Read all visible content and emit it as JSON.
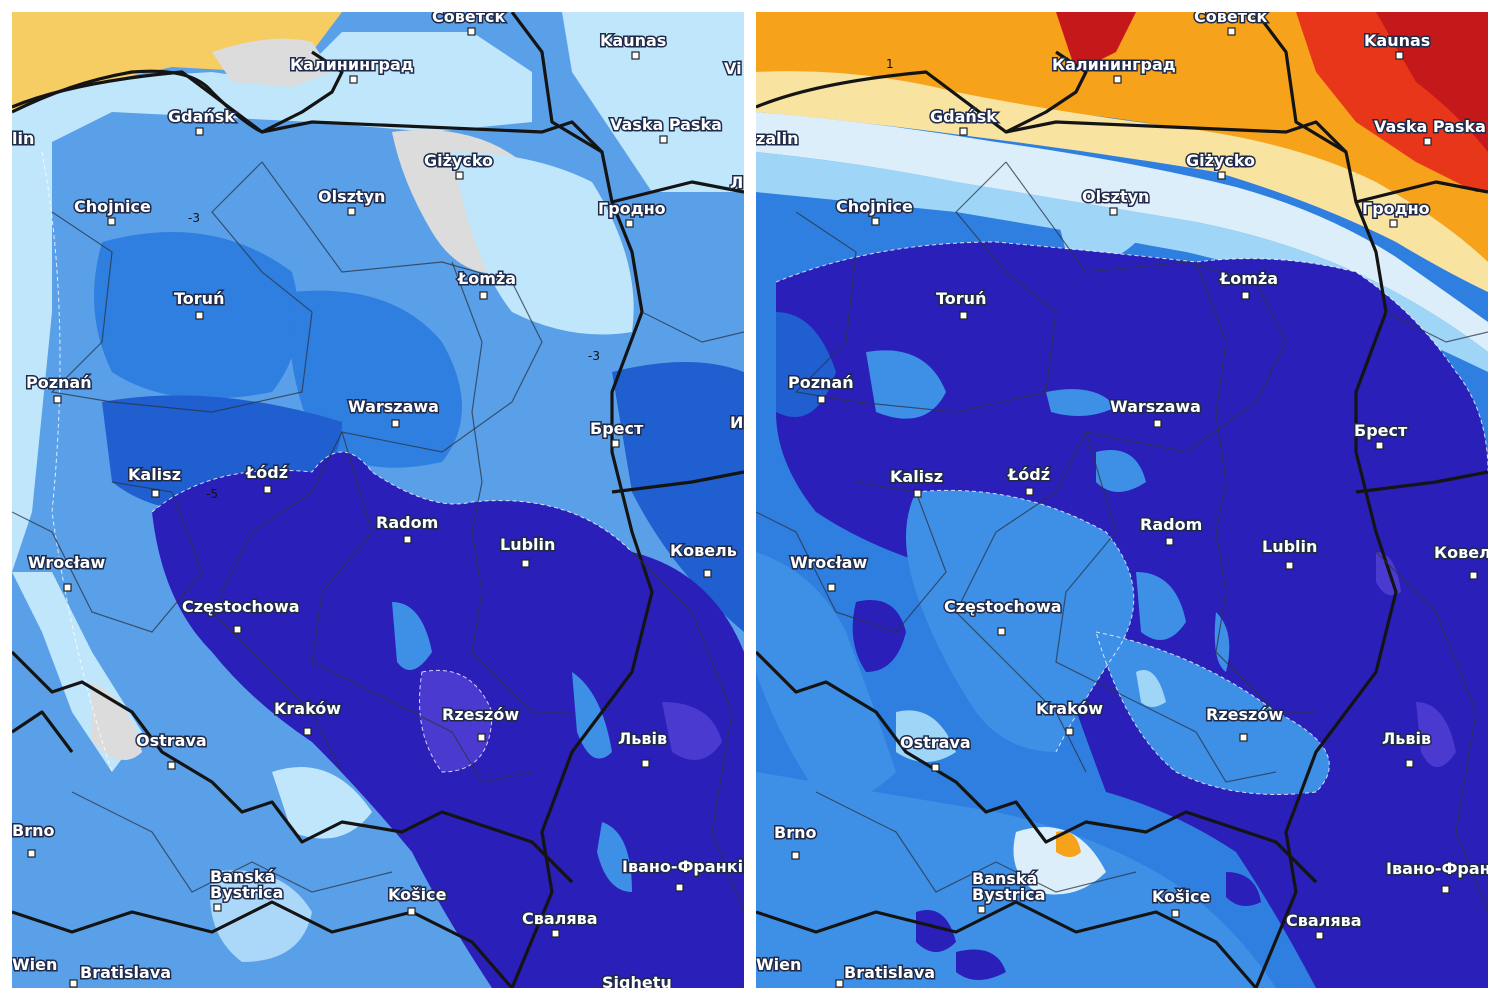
{
  "maps": [
    {
      "name": "left",
      "colors": {
        "bg": "#5aa0e8",
        "light": "#bfe6fb",
        "pale": "#dcdcdc",
        "mid": "#2f7fe0",
        "deep": "#1f5fd0",
        "violet": "#2a1fb8",
        "purple": "#4a3ad0",
        "warm": "#f6cd62",
        "cream": "#f2e3a8"
      },
      "iso_labels": [
        "-3",
        "-5",
        "-3"
      ],
      "cities": [
        {
          "id": "sovetsk",
          "label": "Советск"
        },
        {
          "id": "kaliningrad",
          "label": "Калининград"
        },
        {
          "id": "kaunas",
          "label": "Kaunas"
        },
        {
          "id": "gdansk",
          "label": "Gdańsk"
        },
        {
          "id": "vaska-paska",
          "label": "Vaska Paska"
        },
        {
          "id": "gizycko",
          "label": "Giżycko"
        },
        {
          "id": "chojnice",
          "label": "Chojnice"
        },
        {
          "id": "olsztyn",
          "label": "Olsztyn"
        },
        {
          "id": "grodno",
          "label": "Гродно"
        },
        {
          "id": "lomza",
          "label": "Łomża"
        },
        {
          "id": "torun",
          "label": "Toruń"
        },
        {
          "id": "poznan",
          "label": "Poznań"
        },
        {
          "id": "warszawa",
          "label": "Warszawa"
        },
        {
          "id": "brest",
          "label": "Брест"
        },
        {
          "id": "kalisz",
          "label": "Kalisz"
        },
        {
          "id": "lodz",
          "label": "Łódź"
        },
        {
          "id": "radom",
          "label": "Radom"
        },
        {
          "id": "lublin",
          "label": "Lublin"
        },
        {
          "id": "kovel",
          "label": "Ковель"
        },
        {
          "id": "wroclaw",
          "label": "Wrocław"
        },
        {
          "id": "czestochowa",
          "label": "Częstochowa"
        },
        {
          "id": "krakow",
          "label": "Kraków"
        },
        {
          "id": "rzeszow",
          "label": "Rzeszów"
        },
        {
          "id": "lviv",
          "label": "Львів"
        },
        {
          "id": "ostrava",
          "label": "Ostrava"
        },
        {
          "id": "brno",
          "label": "Brno"
        },
        {
          "id": "ivano",
          "label": "Івано-Франківськ"
        },
        {
          "id": "banska",
          "label": "Banská"
        },
        {
          "id": "bystrica",
          "label": "Bystrica"
        },
        {
          "id": "kosice",
          "label": "Košice"
        },
        {
          "id": "svaliava",
          "label": "Свалява"
        },
        {
          "id": "bratislava",
          "label": "Bratislava"
        },
        {
          "id": "wien",
          "label": "Wien"
        },
        {
          "id": "sighetu",
          "label": "Sighetu"
        },
        {
          "id": "vilnius",
          "label": "Vi"
        },
        {
          "id": "edge-l",
          "label": "Л"
        },
        {
          "id": "edge-i",
          "label": "И"
        },
        {
          "id": "zalin",
          "label": "lin"
        }
      ]
    },
    {
      "name": "right",
      "colors": {
        "bg": "#2f7fe0",
        "light": "#9fd6f8",
        "pale": "#dceef9",
        "mid": "#3e8fe6",
        "deep": "#1f5fd0",
        "violet": "#2a1fb8",
        "purple": "#4a3ad0",
        "warm": "#f6a21a",
        "cream": "#f8e3a0",
        "red": "#e8361a",
        "darkred": "#c4181a"
      },
      "iso_labels": [
        "1"
      ],
      "cities": [
        {
          "id": "sovetsk",
          "label": "Советск"
        },
        {
          "id": "kaliningrad",
          "label": "Калининград"
        },
        {
          "id": "kaunas",
          "label": "Kaunas"
        },
        {
          "id": "gdansk",
          "label": "Gdańsk"
        },
        {
          "id": "vaska-paska",
          "label": "Vaska Paska"
        },
        {
          "id": "gizycko",
          "label": "Giżycko"
        },
        {
          "id": "chojnice",
          "label": "Chojnice"
        },
        {
          "id": "olsztyn",
          "label": "Olsztyn"
        },
        {
          "id": "grodno",
          "label": "Гродно"
        },
        {
          "id": "lomza",
          "label": "Łomża"
        },
        {
          "id": "torun",
          "label": "Toruń"
        },
        {
          "id": "poznan",
          "label": "Poznań"
        },
        {
          "id": "warszawa",
          "label": "Warszawa"
        },
        {
          "id": "brest",
          "label": "Брест"
        },
        {
          "id": "kalisz",
          "label": "Kalisz"
        },
        {
          "id": "lodz",
          "label": "Łódź"
        },
        {
          "id": "radom",
          "label": "Radom"
        },
        {
          "id": "lublin",
          "label": "Lublin"
        },
        {
          "id": "kovel",
          "label": "Ковел"
        },
        {
          "id": "wroclaw",
          "label": "Wrocław"
        },
        {
          "id": "czestochowa",
          "label": "Częstochowa"
        },
        {
          "id": "krakow",
          "label": "Kraków"
        },
        {
          "id": "rzeszow",
          "label": "Rzeszów"
        },
        {
          "id": "lviv",
          "label": "Львів"
        },
        {
          "id": "ostrava",
          "label": "Ostrava"
        },
        {
          "id": "brno",
          "label": "Brno"
        },
        {
          "id": "ivano",
          "label": "Івано-Фран"
        },
        {
          "id": "banska",
          "label": "Banská"
        },
        {
          "id": "bystrica",
          "label": "Bystrica"
        },
        {
          "id": "kosice",
          "label": "Košice"
        },
        {
          "id": "svaliava",
          "label": "Свалява"
        },
        {
          "id": "bratislava",
          "label": "Bratislava"
        },
        {
          "id": "wien",
          "label": "Wien"
        },
        {
          "id": "zalin",
          "label": "zalin"
        }
      ]
    }
  ]
}
